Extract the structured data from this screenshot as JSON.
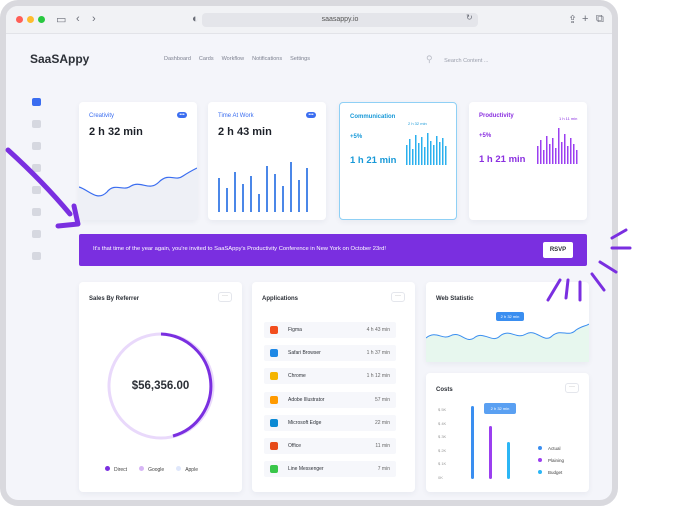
{
  "browser": {
    "url": "saasappy.io"
  },
  "app": {
    "logo": "SaaSAppy",
    "nav": [
      "Dashboard",
      "Cards",
      "Workflow",
      "Notifications",
      "Settings"
    ],
    "search_placeholder": "Search Content ..."
  },
  "cards": {
    "creativity": {
      "title": "Creativity",
      "value": "2 h 32 min"
    },
    "time_at_work": {
      "title": "Time At Work",
      "value": "2 h 43 min"
    },
    "communication": {
      "title": "Communication",
      "change": "+5%",
      "value": "1 h 21 min",
      "tooltip": "2 h 32 min"
    },
    "productivity": {
      "title": "Productivity",
      "change": "+5%",
      "value": "1 h 21 min",
      "tooltip": "1 h 11 min"
    }
  },
  "banner": {
    "message": "It's that time of the year again, you're invited to SaaSAppy's Productivity Conference in New York on October 23rd!",
    "button": "RSVP"
  },
  "sales": {
    "title": "Sales By Referrer",
    "total": "$56,356.00",
    "legend": [
      "Direct",
      "Google",
      "Apple"
    ],
    "colors": [
      "#7a2fe0",
      "#d7b6f5",
      "#dfe7fb"
    ]
  },
  "applications": {
    "title": "Applications",
    "rows": [
      {
        "name": "Figma",
        "time": "4 h 43 min",
        "color": "#f24e1e"
      },
      {
        "name": "Safari Browser",
        "time": "1 h 37 min",
        "color": "#1e88e5"
      },
      {
        "name": "Chrome",
        "time": "1 h 12 min",
        "color": "#f4b400"
      },
      {
        "name": "Adobe Illustrator",
        "time": "57 min",
        "color": "#ff9a00"
      },
      {
        "name": "Microsoft Edge",
        "time": "22 min",
        "color": "#0c8ad4"
      },
      {
        "name": "Office",
        "time": "11 min",
        "color": "#e64a19"
      },
      {
        "name": "Line Messenger",
        "time": "7 min",
        "color": "#39c64a"
      }
    ]
  },
  "web_statistic": {
    "title": "Web Statistic",
    "tooltip": "2 h 32 min"
  },
  "costs": {
    "title": "Costs",
    "y_labels": [
      "$ 5K",
      "$ 4K",
      "$ 3K",
      "$ 2K",
      "$ 1K",
      "0K"
    ],
    "tooltip": "2 h 32 min",
    "legend": [
      {
        "label": "Actual",
        "color": "#3a8ef0"
      },
      {
        "label": "Plaining",
        "color": "#9b3ff0"
      },
      {
        "label": "Budget",
        "color": "#2bb6f5"
      }
    ]
  }
}
